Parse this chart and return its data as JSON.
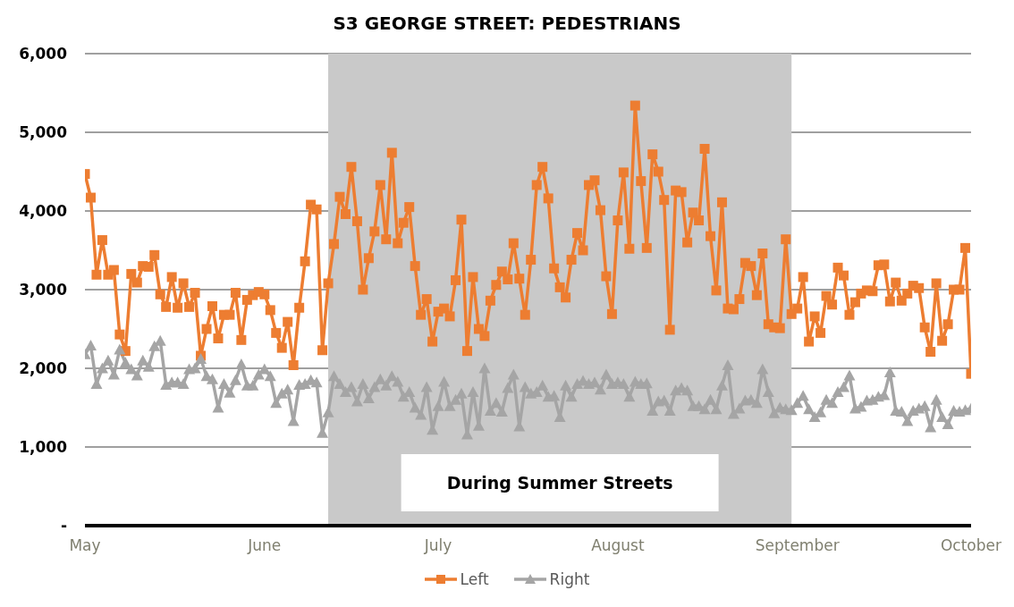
{
  "chart_data": {
    "type": "line",
    "title": "S3 GEORGE STREET: PEDESTRIANS",
    "x": [
      "--05-01",
      "--05-02",
      "--05-03",
      "--05-04",
      "--05-05",
      "--05-06",
      "--05-07",
      "--05-08",
      "--05-09",
      "--05-10",
      "--05-11",
      "--05-12",
      "--05-13",
      "--05-14",
      "--05-15",
      "--05-16",
      "--05-17",
      "--05-18",
      "--05-19",
      "--05-20",
      "--05-21",
      "--05-22",
      "--05-23",
      "--05-24",
      "--05-25",
      "--05-26",
      "--05-27",
      "--05-28",
      "--05-29",
      "--05-30",
      "--05-31",
      "--06-01",
      "--06-02",
      "--06-03",
      "--06-04",
      "--06-05",
      "--06-06",
      "--06-07",
      "--06-08",
      "--06-09",
      "--06-10",
      "--06-11",
      "--06-12",
      "--06-13",
      "--06-14",
      "--06-15",
      "--06-16",
      "--06-17",
      "--06-18",
      "--06-19",
      "--06-20",
      "--06-21",
      "--06-22",
      "--06-23",
      "--06-24",
      "--06-25",
      "--06-26",
      "--06-27",
      "--06-28",
      "--06-29",
      "--06-30",
      "--07-01",
      "--07-02",
      "--07-03",
      "--07-04",
      "--07-05",
      "--07-06",
      "--07-07",
      "--07-08",
      "--07-09",
      "--07-10",
      "--07-11",
      "--07-12",
      "--07-13",
      "--07-14",
      "--07-15",
      "--07-16",
      "--07-17",
      "--07-18",
      "--07-19",
      "--07-20",
      "--07-21",
      "--07-22",
      "--07-23",
      "--07-24",
      "--07-25",
      "--07-26",
      "--07-27",
      "--07-28",
      "--07-29",
      "--07-30",
      "--07-31",
      "--08-01",
      "--08-02",
      "--08-03",
      "--08-04",
      "--08-05",
      "--08-06",
      "--08-07",
      "--08-08",
      "--08-09",
      "--08-10",
      "--08-11",
      "--08-12",
      "--08-13",
      "--08-14",
      "--08-15",
      "--08-16",
      "--08-17",
      "--08-18",
      "--08-19",
      "--08-20",
      "--08-21",
      "--08-22",
      "--08-23",
      "--08-24",
      "--08-25",
      "--08-26",
      "--08-27",
      "--08-28",
      "--08-29",
      "--08-30",
      "--08-31",
      "--09-01",
      "--09-02",
      "--09-03",
      "--09-04",
      "--09-05",
      "--09-06",
      "--09-07",
      "--09-08",
      "--09-09",
      "--09-10",
      "--09-11",
      "--09-12",
      "--09-13",
      "--09-14",
      "--09-15",
      "--09-16",
      "--09-17",
      "--09-18",
      "--09-19",
      "--09-20",
      "--09-21",
      "--09-22",
      "--09-23",
      "--09-24",
      "--09-25",
      "--09-26",
      "--09-27",
      "--09-28",
      "--09-29",
      "--09-30",
      "--10-01"
    ],
    "series": [
      {
        "name": "Left",
        "color": "#ed7d31",
        "marker": "square",
        "values": [
          4470,
          4170,
          3190,
          3630,
          3190,
          3250,
          2430,
          2220,
          3200,
          3090,
          3300,
          3290,
          3440,
          2940,
          2780,
          3160,
          2770,
          3080,
          2780,
          2960,
          2160,
          2500,
          2790,
          2380,
          2680,
          2680,
          2960,
          2360,
          2870,
          2930,
          2970,
          2940,
          2740,
          2450,
          2260,
          2590,
          2040,
          2770,
          3360,
          4080,
          4020,
          2230,
          3080,
          3580,
          4180,
          3960,
          4560,
          3870,
          3000,
          3400,
          3740,
          4330,
          3640,
          4740,
          3590,
          3850,
          4050,
          3300,
          2680,
          2880,
          2340,
          2720,
          2760,
          2660,
          3120,
          3890,
          2220,
          3160,
          2500,
          2410,
          2860,
          3060,
          3230,
          3130,
          3590,
          3140,
          2680,
          3380,
          4330,
          4560,
          4160,
          3270,
          3030,
          2900,
          3380,
          3720,
          3500,
          4330,
          4390,
          4010,
          3170,
          2690,
          3880,
          4490,
          3520,
          5340,
          4380,
          3530,
          4720,
          4500,
          4140,
          2490,
          4260,
          4240,
          3600,
          3980,
          3880,
          4790,
          3680,
          2990,
          4110,
          2760,
          2750,
          2880,
          3340,
          3300,
          2930,
          3460,
          2560,
          2520,
          2510,
          3640,
          2690,
          2760,
          3160,
          2340,
          2660,
          2450,
          2920,
          2810,
          3280,
          3180,
          2680,
          2840,
          2950,
          2990,
          2980,
          3310,
          3320,
          2850,
          3090,
          2860,
          2950,
          3050,
          3020,
          2520,
          2210,
          3080,
          2350,
          2560,
          3000,
          3000,
          3530,
          1930
        ]
      },
      {
        "name": "Right",
        "color": "#a5a5a5",
        "marker": "triangle",
        "values": [
          2180,
          2290,
          1800,
          2000,
          2100,
          1920,
          2240,
          2070,
          1990,
          1910,
          2100,
          2020,
          2280,
          2350,
          1790,
          1820,
          1820,
          1800,
          1990,
          2000,
          2120,
          1900,
          1860,
          1500,
          1800,
          1690,
          1850,
          2050,
          1780,
          1780,
          1920,
          1990,
          1900,
          1560,
          1680,
          1730,
          1330,
          1790,
          1800,
          1850,
          1820,
          1180,
          1440,
          1900,
          1800,
          1700,
          1760,
          1580,
          1800,
          1620,
          1760,
          1860,
          1780,
          1900,
          1830,
          1640,
          1700,
          1500,
          1410,
          1760,
          1220,
          1520,
          1830,
          1520,
          1600,
          1680,
          1160,
          1700,
          1270,
          2000,
          1460,
          1560,
          1450,
          1750,
          1920,
          1260,
          1760,
          1680,
          1700,
          1780,
          1640,
          1650,
          1380,
          1780,
          1640,
          1800,
          1840,
          1800,
          1820,
          1730,
          1920,
          1800,
          1820,
          1800,
          1640,
          1830,
          1800,
          1810,
          1460,
          1580,
          1590,
          1460,
          1720,
          1750,
          1720,
          1520,
          1520,
          1480,
          1600,
          1480,
          1780,
          2040,
          1420,
          1490,
          1590,
          1600,
          1560,
          1990,
          1700,
          1430,
          1500,
          1480,
          1470,
          1560,
          1650,
          1480,
          1380,
          1440,
          1600,
          1560,
          1700,
          1760,
          1910,
          1490,
          1510,
          1590,
          1600,
          1640,
          1660,
          1950,
          1460,
          1450,
          1330,
          1460,
          1490,
          1520,
          1250,
          1600,
          1380,
          1290,
          1460,
          1450,
          1470,
          1490
        ]
      }
    ],
    "xlim": [
      "--05-01",
      "--10-01"
    ],
    "xticks": [
      {
        "value": "--05-01",
        "label": "May"
      },
      {
        "value": "--06-01",
        "label": "June"
      },
      {
        "value": "--07-01",
        "label": "July"
      },
      {
        "value": "--08-01",
        "label": "August"
      },
      {
        "value": "--09-01",
        "label": "September"
      },
      {
        "value": "--10-01",
        "label": "October"
      }
    ],
    "ylim": [
      0,
      6000
    ],
    "yticks": [
      {
        "value": 0,
        "label": "-"
      },
      {
        "value": 1000,
        "label": "1,000"
      },
      {
        "value": 2000,
        "label": "2,000"
      },
      {
        "value": 3000,
        "label": "3,000"
      },
      {
        "value": 4000,
        "label": "4,000"
      },
      {
        "value": 5000,
        "label": "5,000"
      },
      {
        "value": 6000,
        "label": "6,000"
      }
    ],
    "bands": [
      {
        "axis": "x",
        "from": "--06-12",
        "to": "--08-31",
        "label": "During Summer Streets",
        "color": "#c9c9c9"
      }
    ],
    "grid": "y",
    "legend": "bottom",
    "line_style": "solid"
  }
}
